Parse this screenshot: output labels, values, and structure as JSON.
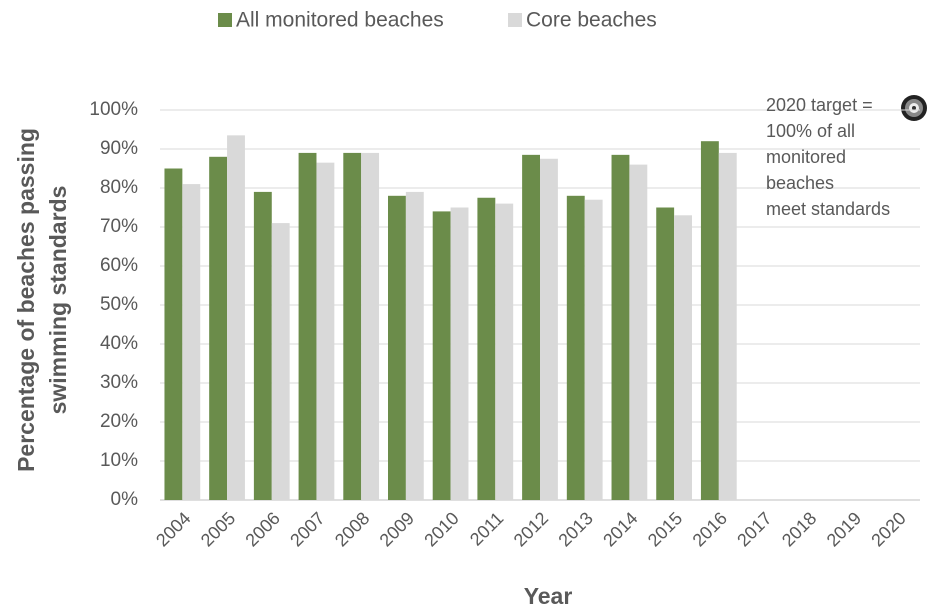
{
  "chart_data": {
    "type": "bar",
    "categories": [
      "2004",
      "2005",
      "2006",
      "2007",
      "2008",
      "2009",
      "2010",
      "2011",
      "2012",
      "2013",
      "2014",
      "2015",
      "2016",
      "2017",
      "2018",
      "2019",
      "2020"
    ],
    "series": [
      {
        "name": "All monitored beaches",
        "color": "#6b8c4a",
        "values": [
          85,
          88,
          79,
          89,
          89,
          78,
          74,
          77.5,
          88.5,
          78,
          88.5,
          75,
          92,
          null,
          null,
          null,
          null
        ]
      },
      {
        "name": "Core beaches",
        "color": "#d9d9d9",
        "values": [
          81,
          93.5,
          71,
          86.5,
          89,
          79,
          75,
          76,
          87.5,
          77,
          86,
          73,
          89,
          null,
          null,
          null,
          null
        ]
      }
    ],
    "ylim": [
      0,
      100
    ],
    "yticks": [
      {
        "value": 0,
        "label": "0%"
      },
      {
        "value": 10,
        "label": "10%"
      },
      {
        "value": 20,
        "label": "20%"
      },
      {
        "value": 30,
        "label": "30%"
      },
      {
        "value": 40,
        "label": "40%"
      },
      {
        "value": 50,
        "label": "50%"
      },
      {
        "value": 60,
        "label": "60%"
      },
      {
        "value": 70,
        "label": "70%"
      },
      {
        "value": 80,
        "label": "80%"
      },
      {
        "value": 90,
        "label": "90%"
      },
      {
        "value": 100,
        "label": "100%"
      }
    ],
    "grid": true,
    "y_label": [
      "Percentage of beaches passing",
      "swimming standards"
    ],
    "x_label": "Year",
    "annotation": [
      "2020 target =",
      "100% of all",
      "monitored",
      "beaches",
      "meet standards"
    ]
  }
}
